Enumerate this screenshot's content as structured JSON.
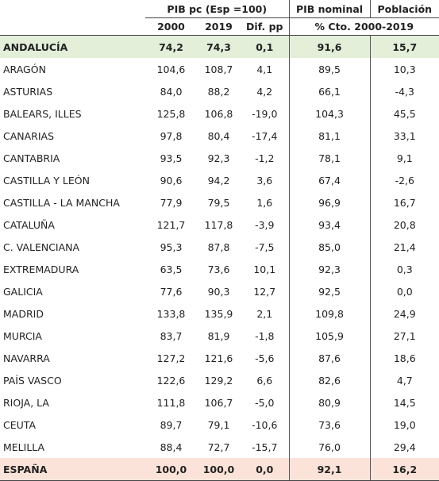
{
  "header": {
    "group_pib_pc": "PIB pc (Esp =100)",
    "group_pib_nominal": "PIB nominal",
    "group_poblacion": "Población",
    "col_2000": "2000",
    "col_2019": "2019",
    "col_dif": "Dif. pp",
    "col_cto": "% Cto. 2000-2019"
  },
  "rows": [
    {
      "name": "ANDALUCÍA",
      "v2000": "74,2",
      "v2019": "74,3",
      "dif": "0,1",
      "nominal": "91,6",
      "poblacion": "15,7",
      "highlight": "green"
    },
    {
      "name": "ARAGÓN",
      "v2000": "104,6",
      "v2019": "108,7",
      "dif": "4,1",
      "nominal": "89,5",
      "poblacion": "10,3"
    },
    {
      "name": "ASTURIAS",
      "v2000": "84,0",
      "v2019": "88,2",
      "dif": "4,2",
      "nominal": "66,1",
      "poblacion": "-4,3"
    },
    {
      "name": "BALEARS, ILLES",
      "v2000": "125,8",
      "v2019": "106,8",
      "dif": "-19,0",
      "nominal": "104,3",
      "poblacion": "45,5"
    },
    {
      "name": "CANARIAS",
      "v2000": "97,8",
      "v2019": "80,4",
      "dif": "-17,4",
      "nominal": "81,1",
      "poblacion": "33,1"
    },
    {
      "name": "CANTABRIA",
      "v2000": "93,5",
      "v2019": "92,3",
      "dif": "-1,2",
      "nominal": "78,1",
      "poblacion": "9,1"
    },
    {
      "name": "CASTILLA Y LEÓN",
      "v2000": "90,6",
      "v2019": "94,2",
      "dif": "3,6",
      "nominal": "67,4",
      "poblacion": "-2,6"
    },
    {
      "name": "CASTILLA - LA MANCHA",
      "v2000": "77,9",
      "v2019": "79,5",
      "dif": "1,6",
      "nominal": "96,9",
      "poblacion": "16,7"
    },
    {
      "name": "CATALUÑA",
      "v2000": "121,7",
      "v2019": "117,8",
      "dif": "-3,9",
      "nominal": "93,4",
      "poblacion": "20,8"
    },
    {
      "name": "C. VALENCIANA",
      "v2000": "95,3",
      "v2019": "87,8",
      "dif": "-7,5",
      "nominal": "85,0",
      "poblacion": "21,4"
    },
    {
      "name": "EXTREMADURA",
      "v2000": "63,5",
      "v2019": "73,6",
      "dif": "10,1",
      "nominal": "92,3",
      "poblacion": "0,3"
    },
    {
      "name": "GALICIA",
      "v2000": "77,6",
      "v2019": "90,3",
      "dif": "12,7",
      "nominal": "92,5",
      "poblacion": "0,0"
    },
    {
      "name": "MADRID",
      "v2000": "133,8",
      "v2019": "135,9",
      "dif": "2,1",
      "nominal": "109,8",
      "poblacion": "24,9"
    },
    {
      "name": "MURCIA",
      "v2000": "83,7",
      "v2019": "81,9",
      "dif": "-1,8",
      "nominal": "105,9",
      "poblacion": "27,1"
    },
    {
      "name": "NAVARRA",
      "v2000": "127,2",
      "v2019": "121,6",
      "dif": "-5,6",
      "nominal": "87,6",
      "poblacion": "18,6"
    },
    {
      "name": "PAÍS VASCO",
      "v2000": "122,6",
      "v2019": "129,2",
      "dif": "6,6",
      "nominal": "82,6",
      "poblacion": "4,7"
    },
    {
      "name": "RIOJA, LA",
      "v2000": "111,8",
      "v2019": "106,7",
      "dif": "-5,0",
      "nominal": "80,9",
      "poblacion": "14,5"
    },
    {
      "name": "CEUTA",
      "v2000": "89,7",
      "v2019": "79,1",
      "dif": "-10,6",
      "nominal": "73,6",
      "poblacion": "19,0"
    },
    {
      "name": "MELILLA",
      "v2000": "88,4",
      "v2019": "72,7",
      "dif": "-15,7",
      "nominal": "76,0",
      "poblacion": "29,4"
    },
    {
      "name": "ESPAÑA",
      "v2000": "100,0",
      "v2019": "100,0",
      "dif": "0,0",
      "nominal": "92,1",
      "poblacion": "16,2",
      "highlight": "red"
    }
  ],
  "colors": {
    "highlight_green": "#e3efd9",
    "highlight_red": "#fbe3d9",
    "rule": "#444444"
  }
}
